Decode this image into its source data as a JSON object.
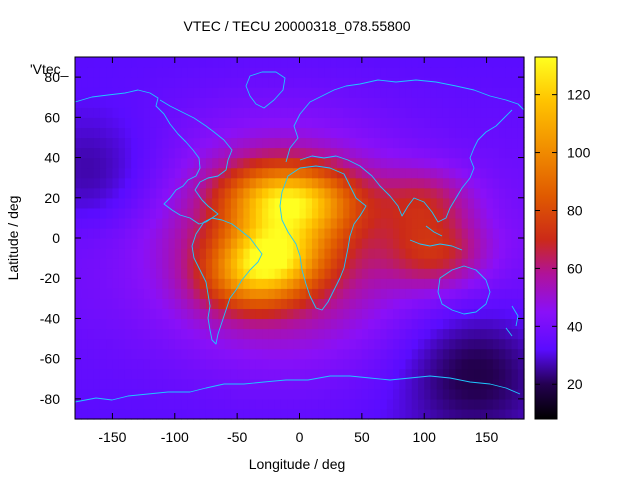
{
  "chart_data": {
    "type": "heatmap",
    "title": "VTEC / TECU 20000318_078.55800",
    "xlabel": "Longitude / deg",
    "ylabel": "Latitude / deg",
    "xlim": [
      -180,
      180
    ],
    "ylim": [
      -90,
      90
    ],
    "x_ticks": [
      -150,
      -100,
      -50,
      0,
      50,
      100,
      150
    ],
    "y_ticks": [
      -80,
      -60,
      -40,
      -20,
      0,
      20,
      40,
      60,
      80
    ],
    "legend_entry": "'Vtec_",
    "colorbar": {
      "range": [
        8,
        133
      ],
      "ticks": [
        20,
        40,
        60,
        80,
        100,
        120
      ],
      "colormap": [
        {
          "value": 8,
          "color": "#000000"
        },
        {
          "value": 20,
          "color": "#240050"
        },
        {
          "value": 32,
          "color": "#5a0cff"
        },
        {
          "value": 45,
          "color": "#8a10f8"
        },
        {
          "value": 58,
          "color": "#b0129a"
        },
        {
          "value": 70,
          "color": "#cc2a18"
        },
        {
          "value": 85,
          "color": "#e05a00"
        },
        {
          "value": 100,
          "color": "#f08a00"
        },
        {
          "value": 118,
          "color": "#ffc400"
        },
        {
          "value": 133,
          "color": "#ffff20"
        }
      ]
    },
    "features": [
      {
        "name": "daytime equatorial anomaly peak",
        "lon": -20,
        "lat": -8,
        "value": 130
      },
      {
        "name": "northern crest",
        "lon": -25,
        "lat": 20,
        "value": 112
      },
      {
        "name": "northern crest east",
        "lon": 10,
        "lat": 18,
        "value": 110
      },
      {
        "name": "southern crest",
        "lon": -40,
        "lat": -20,
        "value": 100
      },
      {
        "name": "asian extension north",
        "lon": 100,
        "lat": 18,
        "value": 82
      },
      {
        "name": "asian extension south",
        "lon": 110,
        "lat": -8,
        "value": 88
      },
      {
        "name": "pacific night low",
        "lon": -165,
        "lat": 30,
        "value": 18
      },
      {
        "name": "southern ocean night low",
        "lon": 140,
        "lat": -65,
        "value": 12
      }
    ],
    "background_value": 40,
    "coastline_color": "#1ec8ff"
  }
}
